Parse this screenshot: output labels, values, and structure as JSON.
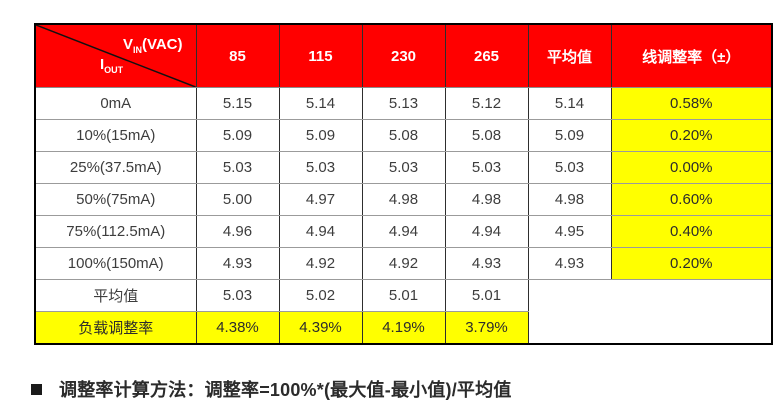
{
  "table": {
    "corner": {
      "v_main": "V",
      "v_sub": "IN",
      "v_rest": "(VAC)",
      "i_main": "I",
      "i_sub": "OUT"
    },
    "columns": [
      "85",
      "115",
      "230",
      "265",
      "平均值",
      "线调整率（±）"
    ],
    "rows": [
      {
        "label": "0mA",
        "values": [
          "5.15",
          "5.14",
          "5.13",
          "5.12"
        ],
        "avg": "5.14",
        "line_reg": "0.58%"
      },
      {
        "label": "10%(15mA)",
        "values": [
          "5.09",
          "5.09",
          "5.08",
          "5.08"
        ],
        "avg": "5.09",
        "line_reg": "0.20%"
      },
      {
        "label": "25%(37.5mA)",
        "values": [
          "5.03",
          "5.03",
          "5.03",
          "5.03"
        ],
        "avg": "5.03",
        "line_reg": "0.00%"
      },
      {
        "label": "50%(75mA)",
        "values": [
          "5.00",
          "4.97",
          "4.98",
          "4.98"
        ],
        "avg": "4.98",
        "line_reg": "0.60%"
      },
      {
        "label": "75%(112.5mA)",
        "values": [
          "4.96",
          "4.94",
          "4.94",
          "4.94"
        ],
        "avg": "4.95",
        "line_reg": "0.40%"
      },
      {
        "label": "100%(150mA)",
        "values": [
          "4.93",
          "4.92",
          "4.92",
          "4.93"
        ],
        "avg": "4.93",
        "line_reg": "0.20%"
      }
    ],
    "summary": [
      {
        "label": "平均值",
        "values": [
          "5.03",
          "5.02",
          "5.01",
          "5.01"
        ],
        "highlight": false
      },
      {
        "label": "负载调整率",
        "values": [
          "4.38%",
          "4.39%",
          "4.19%",
          "3.79%"
        ],
        "highlight": true
      }
    ]
  },
  "footnote": {
    "text": "调整率计算方法：调整率=100%*(最大值-最小值)/平均值"
  },
  "colors": {
    "header_red": "#ff0000",
    "highlight_yellow": "#ffff00",
    "border_outer": "#000000",
    "border_vertical": "#2e2e2e",
    "border_horizontal": "#9b9b9b",
    "header_text": "#ffffff",
    "body_text": "#3d3d3d"
  }
}
